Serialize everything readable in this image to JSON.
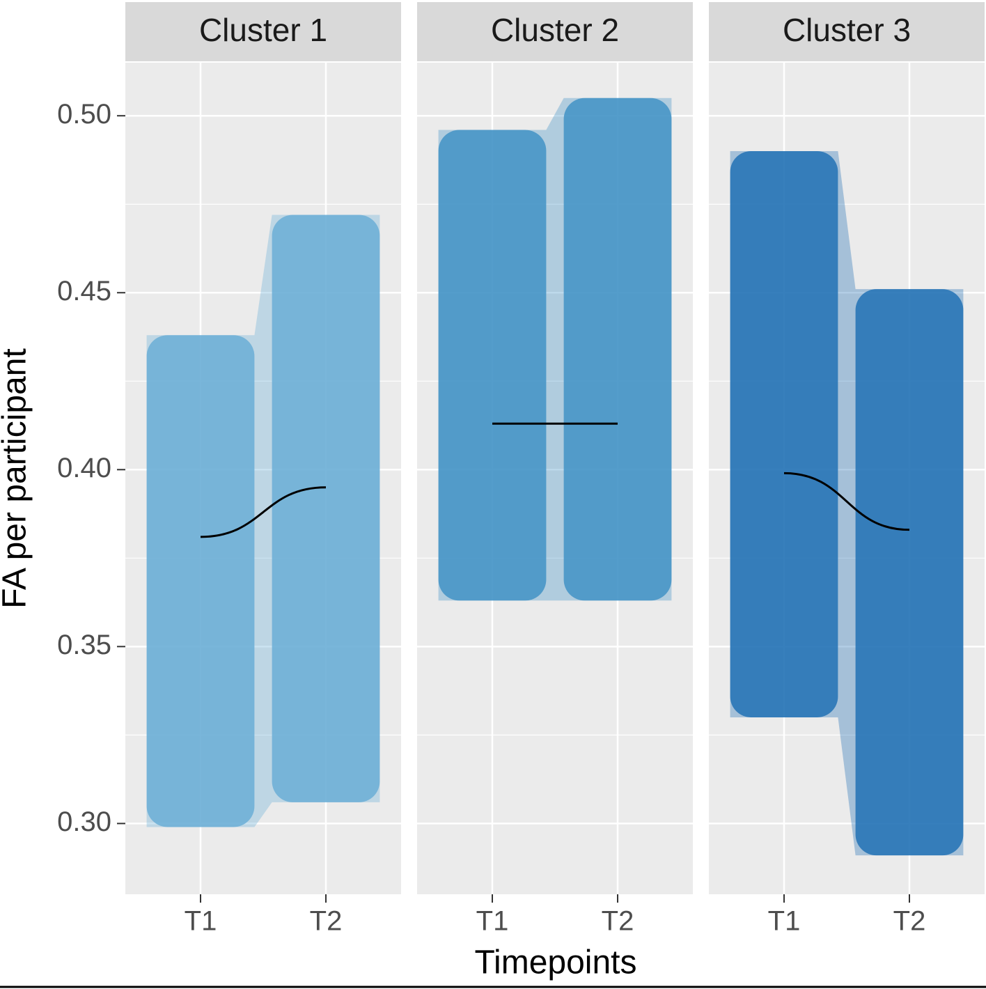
{
  "chart_data": {
    "type": "line",
    "xlabel": "Timepoints",
    "ylabel": "FA per participant",
    "categories": [
      "T1",
      "T2"
    ],
    "ylim": [
      0.28,
      0.515
    ],
    "yticks": [
      {
        "value": 0.3,
        "label": "0.30"
      },
      0.35,
      {
        "value": 0.4,
        "label": "0.40"
      },
      0.45,
      {
        "value": 0.5,
        "label": "0.50"
      }
    ],
    "grid": true,
    "facets": [
      {
        "title": "Cluster 1",
        "color": "#6baed6",
        "values": [
          0.381,
          0.395
        ],
        "ranges": [
          [
            0.299,
            0.438
          ],
          [
            0.306,
            0.472
          ]
        ]
      },
      {
        "title": "Cluster 2",
        "color": "#4292c6",
        "values": [
          0.413,
          0.413
        ],
        "ranges": [
          [
            0.363,
            0.496
          ],
          [
            0.363,
            0.505
          ]
        ]
      },
      {
        "title": "Cluster 3",
        "color": "#2171b5",
        "values": [
          0.399,
          0.383
        ],
        "ranges": [
          [
            0.33,
            0.49
          ],
          [
            0.291,
            0.451
          ]
        ]
      }
    ]
  }
}
